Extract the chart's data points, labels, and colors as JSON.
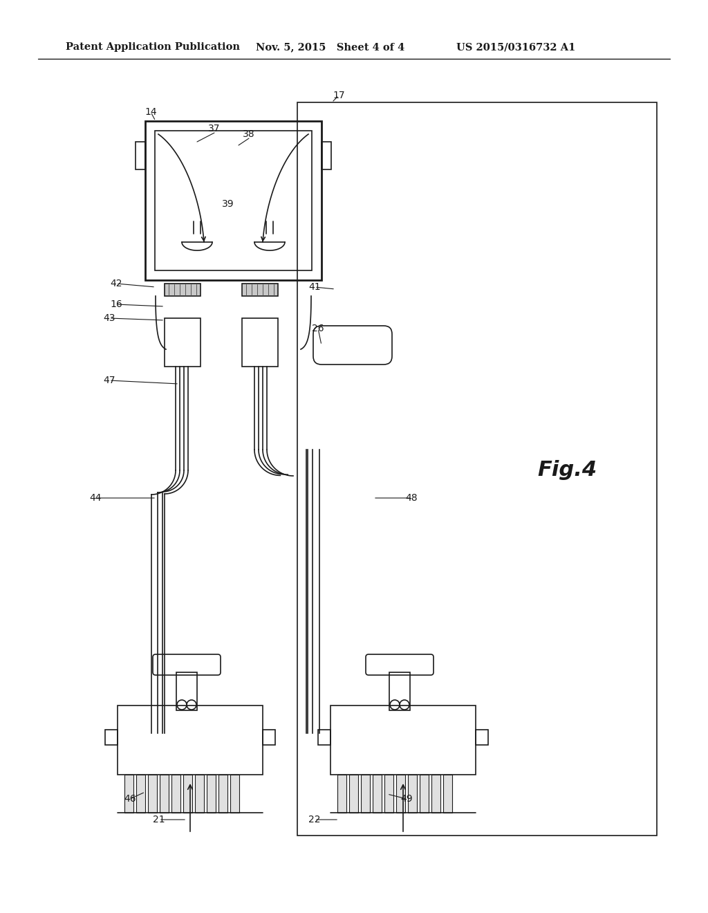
{
  "background_color": "#ffffff",
  "line_color": "#1a1a1a",
  "header_text_left": "Patent Application Publication",
  "header_text_mid": "Nov. 5, 2015   Sheet 4 of 4",
  "header_text_right": "US 2015/0316732 A1",
  "fig_label": "Fig.4"
}
